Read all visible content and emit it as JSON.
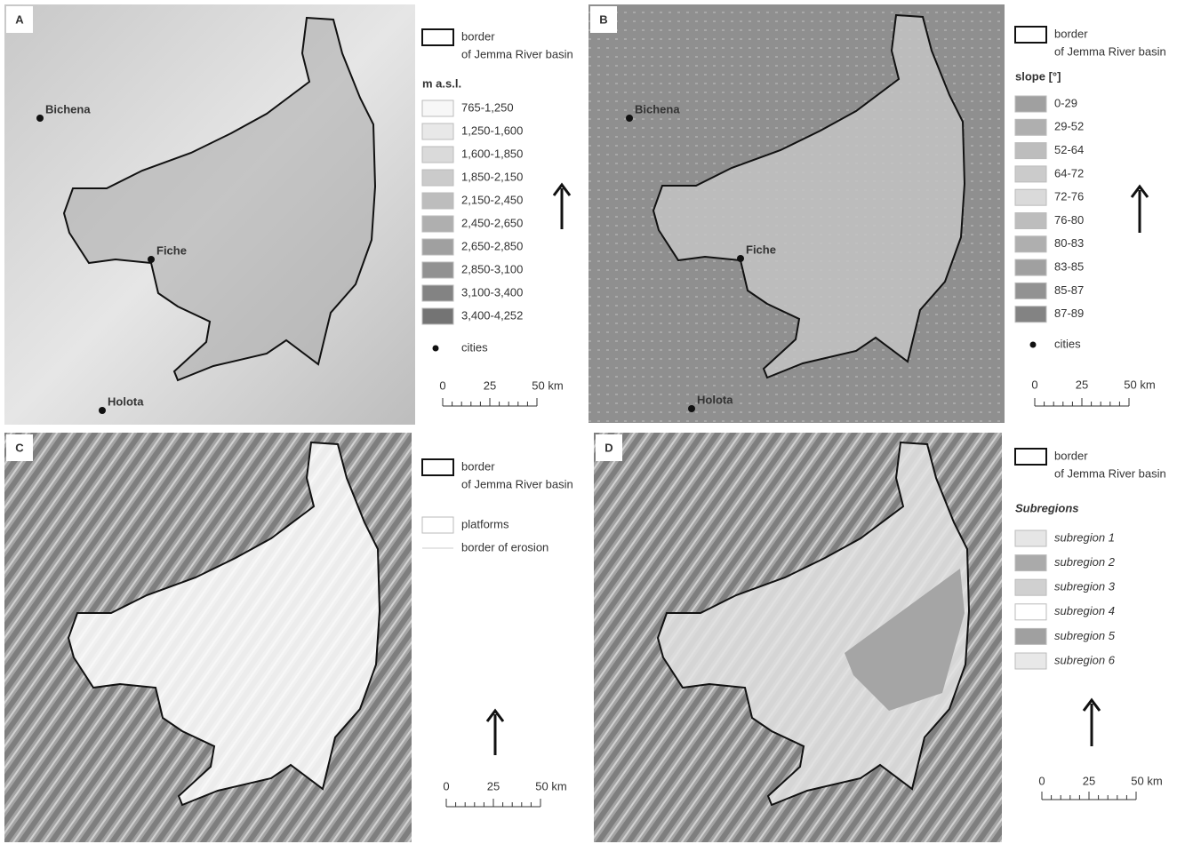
{
  "panels": [
    {
      "label": "A",
      "cities": [
        "Bichena",
        "Fiche",
        "Holota"
      ],
      "legend": {
        "border": [
          "border",
          "of Jemma River basin"
        ],
        "title": "m a.s.l.",
        "items": [
          "765-1,250",
          "1,250-1,600",
          "1,600-1,850",
          "1,850-2,150",
          "2,150-2,450",
          "2,450-2,650",
          "2,650-2,850",
          "2,850-3,100",
          "3,100-3,400",
          "3,400-4,252"
        ],
        "cities": "cities"
      },
      "scale": [
        "0",
        "25",
        "50 km"
      ]
    },
    {
      "label": "B",
      "cities": [
        "Bichena",
        "Fiche",
        "Holota"
      ],
      "legend": {
        "border": [
          "border",
          "of Jemma River basin"
        ],
        "title": "slope [°]",
        "items": [
          "0-29",
          "29-52",
          "52-64",
          "64-72",
          "72-76",
          "76-80",
          "80-83",
          "83-85",
          "85-87",
          "87-89"
        ],
        "cities": "cities"
      },
      "scale": [
        "0",
        "25",
        "50 km"
      ]
    },
    {
      "label": "C",
      "legend": {
        "border": [
          "border",
          "of Jemma River basin"
        ],
        "items": [
          "platforms",
          "border of erosion"
        ]
      },
      "scale": [
        "0",
        "25",
        "50 km"
      ]
    },
    {
      "label": "D",
      "legend": {
        "border": [
          "border",
          "of Jemma River basin"
        ],
        "title": "Subregions",
        "items": [
          "subregion 1",
          "subregion 2",
          "subregion 3",
          "subregion 4",
          "subregion 5",
          "subregion 6"
        ]
      },
      "scale": [
        "0",
        "25",
        "50 km"
      ]
    }
  ]
}
